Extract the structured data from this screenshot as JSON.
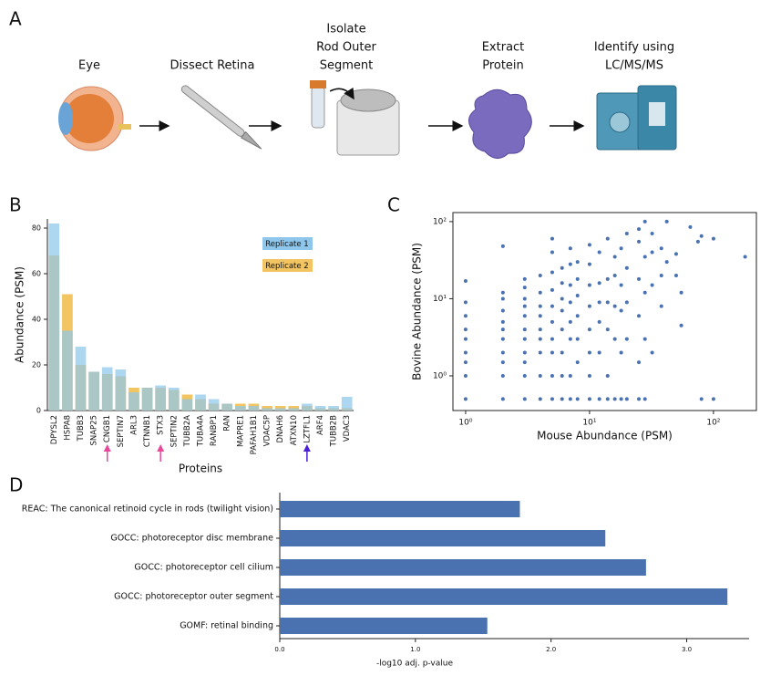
{
  "workflow": {
    "label": "A",
    "steps": [
      [
        "Eye"
      ],
      [
        "Dissect Retina"
      ],
      [
        "Isolate",
        "Rod Outer",
        "Segment"
      ],
      [
        "Extract",
        "Protein"
      ],
      [
        "Identify using",
        "LC/MS/MS"
      ]
    ]
  },
  "chart_data": [
    {
      "label": "B",
      "type": "bar",
      "x_label": "Proteins",
      "y_label": "Abundance (PSM)",
      "categories": [
        "DPYSL2",
        "HSPA8",
        "TUBB3",
        "SNAP25",
        "CNGB1",
        "SEPTIN7",
        "ARL3",
        "CTNNB1",
        "STX3",
        "SEPTIN2",
        "TUBB2A",
        "TUBA4A",
        "RANBP1",
        "RAN",
        "MAPRE1",
        "PAFAH1B1",
        "VDAC5P",
        "DNAH6",
        "ATXN10",
        "LZTFL1",
        "ARF4",
        "TUBB2B",
        "VDAC3"
      ],
      "series": [
        {
          "name": "Replicate 1",
          "color": "#8ec6ec",
          "values": [
            82,
            35,
            28,
            17,
            19,
            18,
            8,
            10,
            11,
            10,
            5,
            7,
            5,
            3,
            2,
            2,
            1,
            1,
            1,
            3,
            2,
            2,
            6
          ]
        },
        {
          "name": "Replicate 2",
          "color": "#f2c462",
          "values": [
            68,
            51,
            20,
            17,
            16,
            15,
            10,
            10,
            10,
            9,
            7,
            5,
            3,
            3,
            3,
            3,
            2,
            2,
            2,
            2,
            1,
            1,
            1
          ]
        }
      ],
      "arrow_colors": [
        null,
        null,
        null,
        null,
        "#e8479a",
        null,
        null,
        null,
        "#e8479a",
        null,
        null,
        null,
        null,
        null,
        null,
        null,
        null,
        null,
        null,
        "#4b1fd6",
        null,
        null,
        null
      ],
      "ylim": [
        0,
        84
      ],
      "yticks": [
        0,
        20,
        40,
        60,
        80
      ],
      "legend": "upper right"
    },
    {
      "label": "C",
      "type": "scatter",
      "x_label": "Mouse Abundance (PSM)",
      "y_label": "Bovine Abundance (PSM)",
      "xscale": "log",
      "yscale": "log",
      "color": "#4a72b0",
      "x": [
        1,
        1,
        1,
        1,
        1,
        1,
        1,
        1,
        1,
        2,
        2,
        2,
        2,
        2,
        2,
        2,
        2,
        2,
        2,
        2,
        3,
        3,
        3,
        3,
        3,
        3,
        3,
        3,
        3,
        3,
        3,
        4,
        4,
        4,
        4,
        4,
        4,
        4,
        4,
        4,
        5,
        5,
        5,
        5,
        5,
        5,
        5,
        5,
        5,
        5,
        6,
        6,
        6,
        6,
        6,
        6,
        6,
        6,
        7,
        7,
        7,
        7,
        7,
        7,
        7,
        7,
        8,
        8,
        8,
        8,
        8,
        8,
        8,
        10,
        10,
        10,
        10,
        10,
        10,
        10,
        10,
        12,
        12,
        12,
        12,
        12,
        12,
        14,
        14,
        14,
        14,
        14,
        14,
        16,
        16,
        16,
        16,
        16,
        18,
        18,
        18,
        18,
        18,
        20,
        20,
        20,
        20,
        20,
        25,
        25,
        25,
        25,
        25,
        25,
        28,
        28,
        28,
        28,
        28,
        32,
        32,
        32,
        32,
        38,
        38,
        38,
        42,
        42,
        50,
        50,
        55,
        55,
        65,
        75,
        80,
        80,
        100,
        100,
        180
      ],
      "values": [
        0.5,
        1,
        1.5,
        2,
        3,
        4,
        6,
        9,
        17,
        0.5,
        1,
        1.5,
        2,
        3,
        4,
        5,
        7,
        10,
        12,
        48,
        0.5,
        1,
        1.5,
        2,
        3,
        4,
        6,
        8,
        10,
        14,
        18,
        0.5,
        1,
        2,
        3,
        4,
        6,
        8,
        12,
        20,
        0.5,
        1,
        2,
        3,
        5,
        8,
        13,
        22,
        40,
        60,
        0.5,
        1,
        2,
        4,
        7,
        10,
        16,
        25,
        0.5,
        1,
        3,
        5,
        9,
        15,
        28,
        45,
        0.5,
        1.5,
        3,
        6,
        11,
        18,
        30,
        0.5,
        1,
        2,
        4,
        8,
        15,
        28,
        50,
        0.5,
        2,
        5,
        9,
        16,
        40,
        0.5,
        1,
        4,
        9,
        18,
        60,
        0.5,
        3,
        8,
        20,
        35,
        0.5,
        2,
        7,
        15,
        45,
        0.5,
        3,
        9,
        25,
        70,
        0.5,
        1.5,
        6,
        18,
        55,
        80,
        0.5,
        3,
        12,
        35,
        100,
        2,
        15,
        40,
        70,
        8,
        20,
        45,
        30,
        100,
        20,
        38,
        4.5,
        12,
        85,
        55,
        0.5,
        65,
        0.5,
        60,
        35
      ],
      "xlim": [
        0.79,
        222
      ],
      "ylim": [
        0.355,
        131
      ],
      "xticks": [
        {
          "value": 1,
          "label": "10⁰"
        },
        {
          "value": 10,
          "label": "10¹"
        },
        {
          "value": 100,
          "label": "10²"
        }
      ],
      "yticks": [
        {
          "value": 1,
          "label": "10⁰"
        },
        {
          "value": 10,
          "label": "10¹"
        },
        {
          "value": 100,
          "label": "10²"
        }
      ]
    },
    {
      "label": "D",
      "type": "barh",
      "x_label": "-log10 adj. p-value",
      "color": "#4a72b0",
      "categories": [
        "REAC: The canonical retinoid cycle in rods (twilight vision)",
        "GOCC: photoreceptor disc membrane",
        "GOCC: photoreceptor cell cilium",
        "GOCC: photoreceptor outer segment",
        "GOMF: retinal binding"
      ],
      "values": [
        1.77,
        2.4,
        2.7,
        3.3,
        1.53
      ],
      "xlim": [
        0,
        3.46
      ],
      "xticks": [
        {
          "value": 0,
          "label": "0.0"
        },
        {
          "value": 1,
          "label": "1.0"
        },
        {
          "value": 2,
          "label": "2.0"
        },
        {
          "value": 3,
          "label": "3.0"
        }
      ]
    }
  ]
}
